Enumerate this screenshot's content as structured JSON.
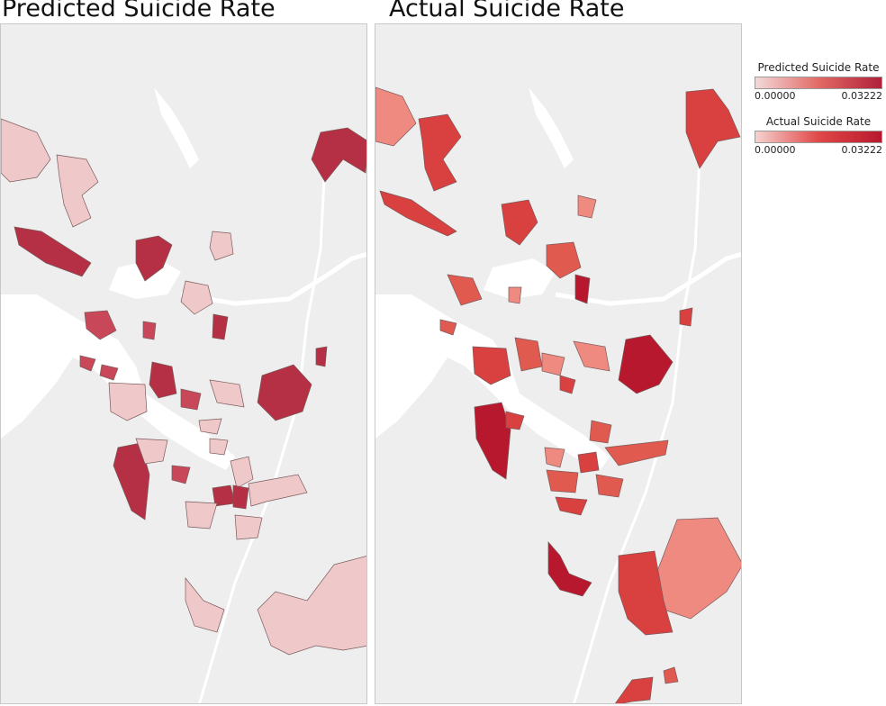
{
  "panels": [
    {
      "title": "Predicted Suicide Rate"
    },
    {
      "title": "Actual Suicide Rate"
    }
  ],
  "legend": [
    {
      "title": "Predicted Suicide Rate",
      "min_label": "0.00000",
      "max_label": "0.03222",
      "color_low": "#f2d9d9",
      "color_high": "#b0213a"
    },
    {
      "title": "Actual Suicide Rate",
      "min_label": "0.00000",
      "max_label": "0.03222",
      "color_low": "#f5d3d0",
      "color_high": "#b8182e"
    }
  ],
  "colors": {
    "land": "#eeeeef",
    "water": "#ffffff",
    "low": "#efc9c9",
    "mid": "#e26a66",
    "high": "#b0213a",
    "border": "#7a5a5a"
  }
}
